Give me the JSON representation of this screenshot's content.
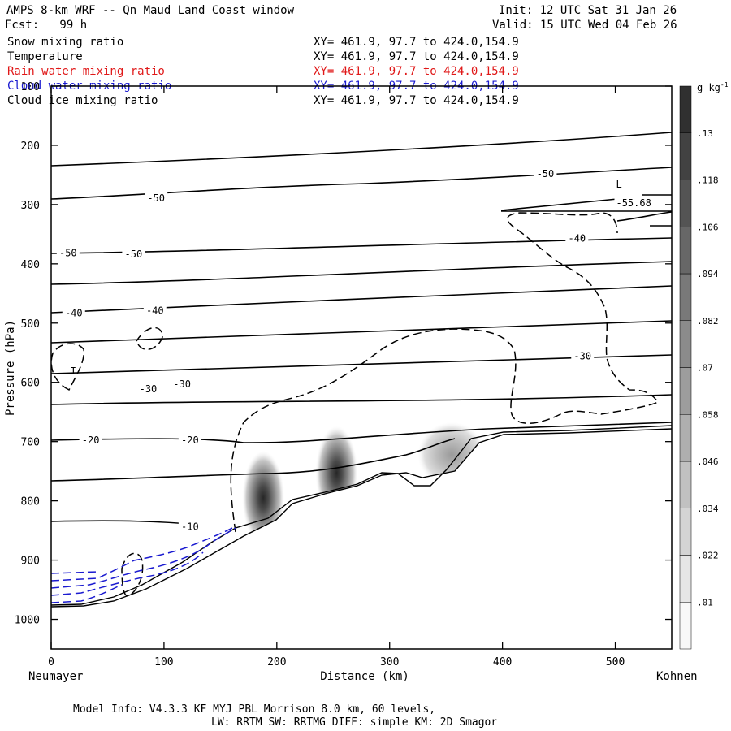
{
  "header": {
    "title": "AMPS 8-km WRF -- Qn Maud Land Coast window",
    "forecast": "Fcst:   99 h",
    "init": "Init: 12 UTC Sat 31 Jan 26",
    "valid": "Valid: 15 UTC Wed 04 Feb 26"
  },
  "fields": [
    {
      "name": "Snow mixing ratio",
      "xy": "XY= 461.9, 97.7 to 424.0,154.9",
      "color": "#000000"
    },
    {
      "name": "Temperature",
      "xy": "XY= 461.9, 97.7 to 424.0,154.9",
      "color": "#000000"
    },
    {
      "name": "Rain water mixing ratio",
      "xy": "XY= 461.9, 97.7 to 424.0,154.9",
      "color": "#e01818"
    },
    {
      "name": "Cloud water mixing ratio",
      "xy": "XY= 461.9, 97.7 to 424.0,154.9",
      "color": "#1a1ad0"
    },
    {
      "name": "Cloud ice mixing ratio",
      "xy": "XY= 461.9, 97.7 to 424.0,154.9",
      "color": "#000000"
    }
  ],
  "footer": {
    "line1": "Model Info: V4.3.3   KF     MYJ PBL  Morrison            8.0 km,  60 levels,",
    "line2": "LW: RRTM SW: RRTMG   DIFF: simple KM: 2D Smagor"
  },
  "chart_data": {
    "type": "heatmap",
    "title": "",
    "xlabel": "Distance (km)",
    "ylabel": "Pressure (hPa)",
    "xlim": [
      0,
      550
    ],
    "ylim": [
      1050,
      100
    ],
    "x_ticks": [
      0,
      100,
      200,
      300,
      400,
      500
    ],
    "y_ticks": [
      100,
      200,
      300,
      400,
      500,
      600,
      700,
      800,
      900,
      1000
    ],
    "x_start_label": "Neumayer",
    "x_end_label": "Kohnen",
    "colorbar": {
      "unit": "g kg-1",
      "ticks": [
        ".01",
        ".022",
        ".034",
        ".046",
        ".058",
        ".07",
        ".082",
        ".094",
        ".106",
        ".118",
        ".13"
      ]
    },
    "terrain_surface": [
      [
        0,
        978
      ],
      [
        50,
        972
      ],
      [
        80,
        955
      ],
      [
        100,
        933
      ],
      [
        130,
        910
      ],
      [
        170,
        862
      ],
      [
        200,
        825
      ],
      [
        220,
        805
      ],
      [
        260,
        785
      ],
      [
        290,
        752
      ],
      [
        310,
        760
      ],
      [
        330,
        770
      ],
      [
        350,
        752
      ],
      [
        370,
        712
      ],
      [
        400,
        688
      ],
      [
        450,
        685
      ],
      [
        500,
        682
      ],
      [
        550,
        678
      ]
    ],
    "temperature_contour_labels": [
      {
        "value": "-50",
        "x": 93,
        "p": 289
      },
      {
        "value": "-50",
        "x": 438,
        "p": 248
      },
      {
        "value": "-50",
        "x": 15,
        "p": 382
      },
      {
        "value": "-50",
        "x": 73,
        "p": 384
      },
      {
        "value": "-40",
        "x": 20,
        "p": 483
      },
      {
        "value": "-40",
        "x": 92,
        "p": 479
      },
      {
        "value": "-40",
        "x": 466,
        "p": 357
      },
      {
        "value": "-30",
        "x": 86,
        "p": 611
      },
      {
        "value": "-30",
        "x": 116,
        "p": 603
      },
      {
        "value": "-30",
        "x": 471,
        "p": 556
      },
      {
        "value": "-20",
        "x": 35,
        "p": 698
      },
      {
        "value": "-20",
        "x": 123,
        "p": 698
      },
      {
        "value": "-10",
        "x": 123,
        "p": 844
      }
    ],
    "low_label": {
      "text": "L",
      "value": "-55.68",
      "x": 505,
      "p": 282
    },
    "cloud_ice_label": {
      "text": "I",
      "x": 20,
      "p": 584
    },
    "snow_maxima": [
      {
        "x": 188,
        "p": 795,
        "max": 0.13
      },
      {
        "x": 253,
        "p": 753,
        "max": 0.13
      },
      {
        "x": 355,
        "p": 722,
        "max": 0.07
      }
    ]
  }
}
